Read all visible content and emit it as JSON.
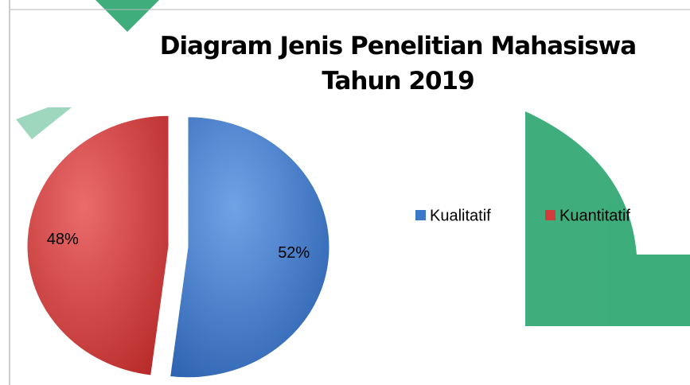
{
  "chart_data": {
    "type": "pie",
    "title": "Diagram Jenis Penelitian Mahasiswa Tahun 2019",
    "categories": [
      "Kualitatif",
      "Kuantitatif"
    ],
    "values": [
      52,
      48
    ],
    "value_labels": [
      "52%",
      "48%"
    ],
    "colors": [
      "#3c78c8",
      "#d23c3c"
    ],
    "legend": "right"
  }
}
